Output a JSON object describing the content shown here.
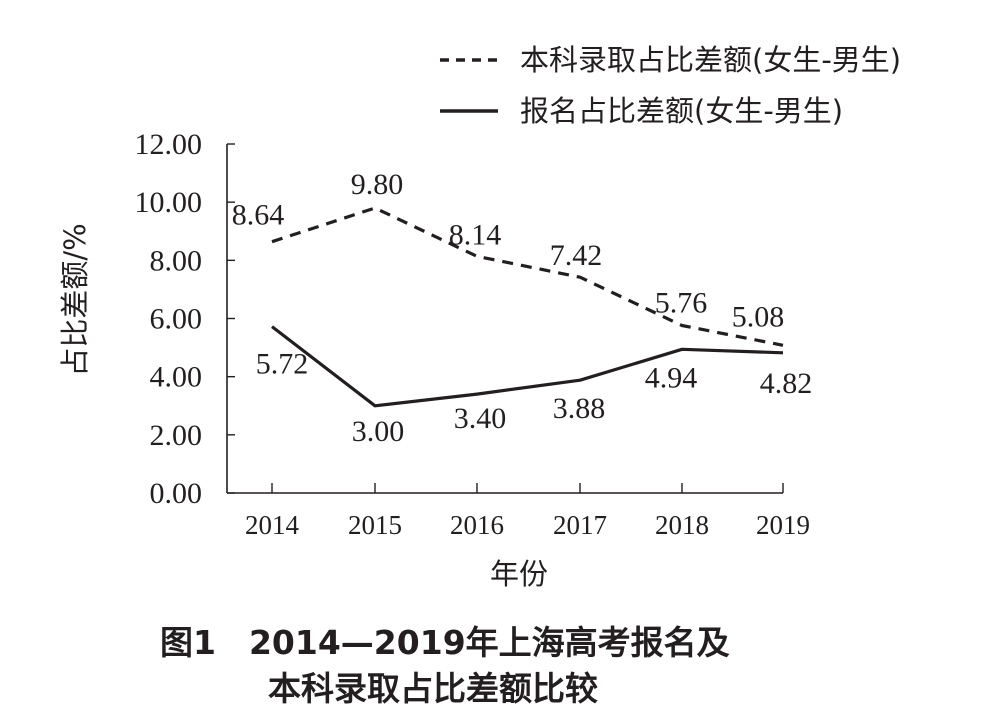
{
  "chart_data": {
    "type": "line",
    "categories": [
      "2014",
      "2015",
      "2016",
      "2017",
      "2018",
      "2019"
    ],
    "series": [
      {
        "name": "本科录取占比差额(女生-男生)",
        "style": "dashed",
        "values": [
          8.64,
          9.8,
          8.14,
          7.42,
          5.76,
          5.08
        ],
        "labels": [
          "8.64",
          "9.80",
          "8.14",
          "7.42",
          "5.76",
          "5.08"
        ]
      },
      {
        "name": "报名占比差额(女生-男生)",
        "style": "solid",
        "values": [
          5.72,
          3.0,
          3.4,
          3.88,
          4.94,
          4.82
        ],
        "labels": [
          "5.72",
          "3.00",
          "3.40",
          "3.88",
          "4.94",
          "4.82"
        ]
      }
    ],
    "yticks": [
      "0.00",
      "2.00",
      "4.00",
      "6.00",
      "8.00",
      "10.00",
      "12.00"
    ],
    "ylim": [
      0,
      12
    ],
    "xlabel": "年份",
    "ylabel": "占比差额/%",
    "legend_position": "top-right",
    "grid": false,
    "line_color": "#231f20"
  },
  "caption": {
    "line1": "图1　2014—2019年上海高考报名及",
    "line2": "本科录取占比差额比较"
  }
}
